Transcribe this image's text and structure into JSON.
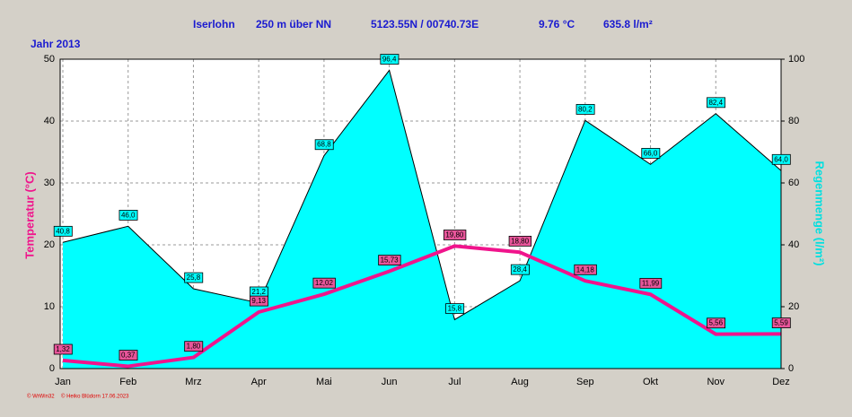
{
  "chart_data": {
    "type": "area-line",
    "header": {
      "location": "Iserlohn",
      "altitude": "250 m über NN",
      "coordinates": "5123.55N / 00740.73E",
      "mean_temperature": "9.76 °C",
      "total_rain": "635.8 l/m²"
    },
    "year_label": "Jahr  2013",
    "ylabel": "Temperatur  (°C)",
    "y2label": "Regenmenge  (l/m²)",
    "footer": [
      "© WrWin32",
      "© Heiko Blüdorn  17.06.2023"
    ],
    "categories": [
      "Jan",
      "Feb",
      "Mrz",
      "Apr",
      "Mai",
      "Jun",
      "Jul",
      "Aug",
      "Sep",
      "Okt",
      "Nov",
      "Dez"
    ],
    "ylim": [
      0,
      50
    ],
    "yticks": [
      0,
      10,
      20,
      30,
      40,
      50
    ],
    "y2lim": [
      0,
      100
    ],
    "y2ticks": [
      0,
      20,
      40,
      60,
      80,
      100
    ],
    "grid": true,
    "series": [
      {
        "name": "Regenmenge",
        "type": "area",
        "axis": "y2",
        "color": "#00ffff",
        "values": [
          40.8,
          46.0,
          25.8,
          21.2,
          68.8,
          96.4,
          15.8,
          28.4,
          80.2,
          66.0,
          82.4,
          64.0
        ],
        "value_labels": [
          "40,8",
          "46,0",
          "25,8",
          "21,2",
          "68,8",
          "96,4",
          "15,8",
          "28,4",
          "80,2",
          "66,0",
          "82,4",
          "64,0"
        ]
      },
      {
        "name": "Temperatur",
        "type": "line",
        "axis": "y",
        "color": "#f0148c",
        "values": [
          1.32,
          0.37,
          1.8,
          9.13,
          12.02,
          15.73,
          19.8,
          18.8,
          14.18,
          11.99,
          5.56,
          5.59
        ],
        "value_labels": [
          "1,32",
          "0,37",
          "1,80",
          "9,13",
          "12,02",
          "15,73",
          "19,80",
          "18,80",
          "14,18",
          "11,99",
          "5,56",
          "5,59"
        ]
      }
    ]
  }
}
